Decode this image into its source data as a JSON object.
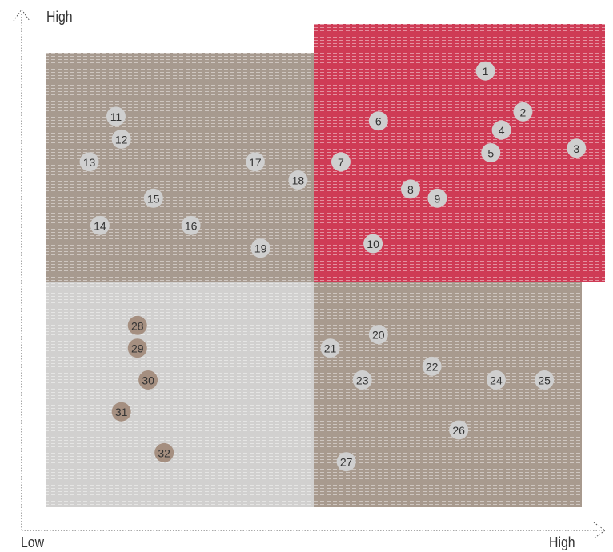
{
  "axes": {
    "y_high_label": "High",
    "x_low_label": "Low",
    "x_high_label": "High"
  },
  "colors": {
    "top_left": "#a79a8f",
    "top_right": "#cf3b55",
    "bottom_left": "#d1d0cf",
    "bottom_right": "#a89a8e",
    "point_light": "#cfcfcf",
    "point_dark": "#a58f80"
  },
  "chart_data": {
    "type": "scatter",
    "title": "",
    "xlabel": "",
    "ylabel": "",
    "xlim": [
      0,
      100
    ],
    "ylim": [
      0,
      100
    ],
    "grid": false,
    "quadrant_split": {
      "x": 50,
      "y": 50
    },
    "points": [
      {
        "label": "1",
        "x": 82,
        "y": 96,
        "style": "light"
      },
      {
        "label": "2",
        "x": 89,
        "y": 87,
        "style": "light"
      },
      {
        "label": "3",
        "x": 99,
        "y": 79,
        "style": "light"
      },
      {
        "label": "4",
        "x": 85,
        "y": 83,
        "style": "light"
      },
      {
        "label": "5",
        "x": 83,
        "y": 78,
        "style": "light"
      },
      {
        "label": "6",
        "x": 62,
        "y": 85,
        "style": "light"
      },
      {
        "label": "7",
        "x": 55,
        "y": 76,
        "style": "light"
      },
      {
        "label": "8",
        "x": 68,
        "y": 70,
        "style": "light"
      },
      {
        "label": "9",
        "x": 73,
        "y": 68,
        "style": "light"
      },
      {
        "label": "10",
        "x": 61,
        "y": 58,
        "style": "light"
      },
      {
        "label": "11",
        "x": 13,
        "y": 86,
        "style": "light"
      },
      {
        "label": "12",
        "x": 14,
        "y": 81,
        "style": "light"
      },
      {
        "label": "13",
        "x": 8,
        "y": 76,
        "style": "light"
      },
      {
        "label": "14",
        "x": 10,
        "y": 62,
        "style": "light"
      },
      {
        "label": "15",
        "x": 20,
        "y": 68,
        "style": "light"
      },
      {
        "label": "16",
        "x": 27,
        "y": 62,
        "style": "light"
      },
      {
        "label": "17",
        "x": 39,
        "y": 76,
        "style": "light"
      },
      {
        "label": "18",
        "x": 47,
        "y": 72,
        "style": "light"
      },
      {
        "label": "19",
        "x": 40,
        "y": 57,
        "style": "light"
      },
      {
        "label": "20",
        "x": 62,
        "y": 38,
        "style": "light"
      },
      {
        "label": "21",
        "x": 53,
        "y": 35,
        "style": "light"
      },
      {
        "label": "22",
        "x": 72,
        "y": 31,
        "style": "light"
      },
      {
        "label": "23",
        "x": 59,
        "y": 28,
        "style": "light"
      },
      {
        "label": "24",
        "x": 84,
        "y": 28,
        "style": "light"
      },
      {
        "label": "25",
        "x": 93,
        "y": 28,
        "style": "light"
      },
      {
        "label": "26",
        "x": 77,
        "y": 17,
        "style": "light"
      },
      {
        "label": "27",
        "x": 56,
        "y": 10,
        "style": "light"
      },
      {
        "label": "28",
        "x": 17,
        "y": 40,
        "style": "dark"
      },
      {
        "label": "29",
        "x": 17,
        "y": 35,
        "style": "dark"
      },
      {
        "label": "30",
        "x": 19,
        "y": 28,
        "style": "dark"
      },
      {
        "label": "31",
        "x": 14,
        "y": 21,
        "style": "dark"
      },
      {
        "label": "32",
        "x": 22,
        "y": 12,
        "style": "dark"
      }
    ]
  }
}
